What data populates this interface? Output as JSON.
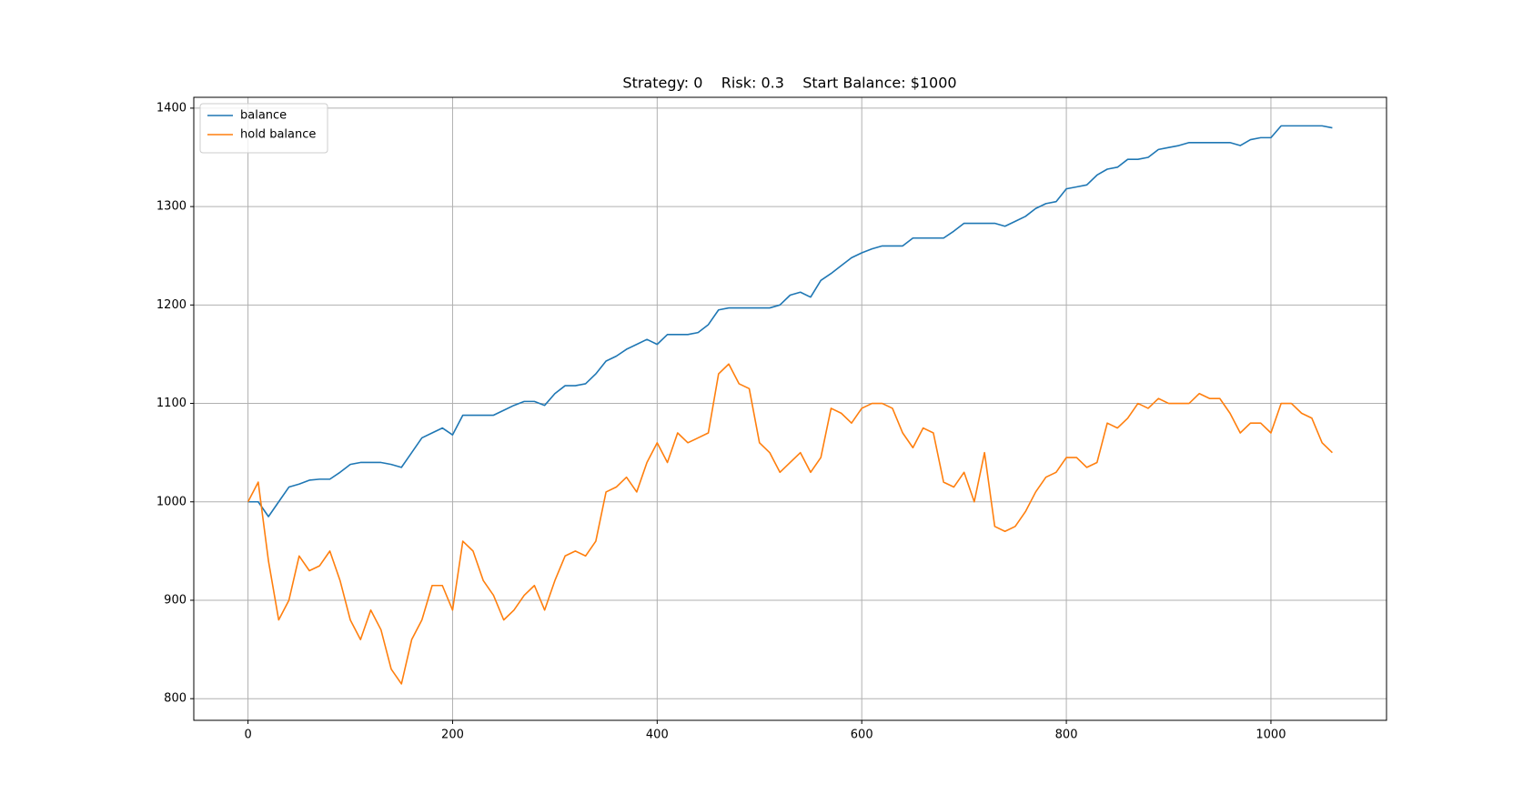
{
  "chart_data": {
    "type": "line",
    "title": "Strategy: 0    Risk: 0.3    Start Balance: $1000",
    "x": [
      0,
      10,
      20,
      30,
      40,
      50,
      60,
      70,
      80,
      90,
      100,
      110,
      120,
      130,
      140,
      150,
      160,
      170,
      180,
      190,
      200,
      210,
      220,
      230,
      240,
      250,
      260,
      270,
      280,
      290,
      300,
      310,
      320,
      330,
      340,
      350,
      360,
      370,
      380,
      390,
      400,
      410,
      420,
      430,
      440,
      450,
      460,
      470,
      480,
      490,
      500,
      510,
      520,
      530,
      540,
      550,
      560,
      570,
      580,
      590,
      600,
      610,
      620,
      630,
      640,
      650,
      660,
      670,
      680,
      690,
      700,
      710,
      720,
      730,
      740,
      750,
      760,
      770,
      780,
      790,
      800,
      810,
      820,
      830,
      840,
      850,
      860,
      870,
      880,
      890,
      900,
      910,
      920,
      930,
      940,
      950,
      960,
      970,
      980,
      990,
      1000,
      1010,
      1020,
      1030,
      1040,
      1050,
      1060
    ],
    "series": [
      {
        "name": "balance",
        "color": "#1f77b4",
        "values": [
          1000,
          1000,
          985,
          1000,
          1015,
          1018,
          1022,
          1023,
          1023,
          1030,
          1038,
          1040,
          1040,
          1040,
          1038,
          1035,
          1050,
          1065,
          1070,
          1075,
          1068,
          1088,
          1088,
          1088,
          1088,
          1093,
          1098,
          1102,
          1102,
          1098,
          1110,
          1118,
          1118,
          1120,
          1130,
          1143,
          1148,
          1155,
          1160,
          1165,
          1160,
          1170,
          1170,
          1170,
          1172,
          1180,
          1195,
          1197,
          1197,
          1197,
          1197,
          1197,
          1200,
          1210,
          1213,
          1208,
          1225,
          1232,
          1240,
          1248,
          1253,
          1257,
          1260,
          1260,
          1260,
          1268,
          1268,
          1268,
          1268,
          1275,
          1283,
          1283,
          1283,
          1283,
          1280,
          1285,
          1290,
          1298,
          1303,
          1305,
          1318,
          1320,
          1322,
          1332,
          1338,
          1340,
          1348,
          1348,
          1350,
          1358,
          1360,
          1362,
          1365,
          1365,
          1365,
          1365,
          1365,
          1362,
          1368,
          1370,
          1370,
          1382,
          1382,
          1382,
          1382,
          1382,
          1380
        ]
      },
      {
        "name": "hold balance",
        "color": "#ff7f0e",
        "values": [
          1000,
          1020,
          940,
          880,
          900,
          945,
          930,
          935,
          950,
          920,
          880,
          860,
          890,
          870,
          830,
          815,
          860,
          880,
          915,
          915,
          890,
          960,
          950,
          920,
          905,
          880,
          890,
          905,
          915,
          890,
          920,
          945,
          950,
          945,
          960,
          1010,
          1015,
          1025,
          1010,
          1040,
          1060,
          1040,
          1070,
          1060,
          1065,
          1070,
          1130,
          1140,
          1120,
          1115,
          1060,
          1050,
          1030,
          1040,
          1050,
          1030,
          1045,
          1095,
          1090,
          1080,
          1095,
          1100,
          1100,
          1095,
          1070,
          1055,
          1075,
          1070,
          1020,
          1015,
          1030,
          1000,
          1050,
          975,
          970,
          975,
          990,
          1010,
          1025,
          1030,
          1045,
          1045,
          1035,
          1040,
          1080,
          1075,
          1085,
          1100,
          1095,
          1105,
          1100,
          1100,
          1100,
          1110,
          1105,
          1105,
          1090,
          1070,
          1080,
          1080,
          1070,
          1100,
          1100,
          1090,
          1085,
          1060,
          1050
        ]
      }
    ],
    "xlim": [
      -53,
      1113
    ],
    "ylim": [
      778,
      1411
    ],
    "xticks": [
      0,
      200,
      400,
      600,
      800,
      1000
    ],
    "yticks": [
      800,
      900,
      1000,
      1100,
      1200,
      1300,
      1400
    ],
    "grid": true,
    "legend": "upper left"
  }
}
